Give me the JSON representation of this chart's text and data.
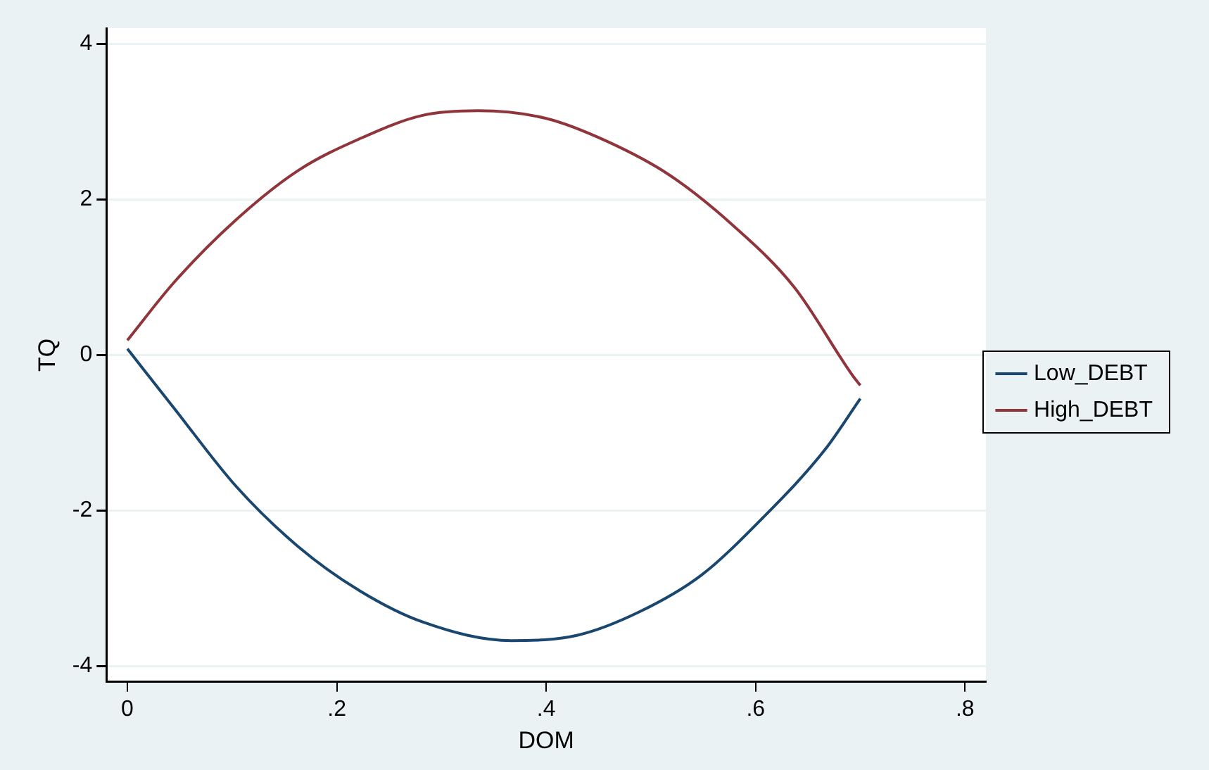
{
  "chart_data": {
    "type": "line",
    "xlabel": "DOM",
    "ylabel": "TQ",
    "xlim": [
      -0.02,
      0.82
    ],
    "ylim": [
      -4.2,
      4.2
    ],
    "xticks": [
      0,
      {
        "value": 0.2,
        "label": ".2"
      },
      {
        "value": 0.4,
        "label": ".4"
      },
      {
        "value": 0.6,
        "label": ".6"
      },
      {
        "value": 0.8,
        "label": ".8"
      }
    ],
    "yticks": [
      -4,
      -2,
      0,
      2,
      4
    ],
    "grid": "y",
    "legend": "right",
    "marker": "none",
    "line_style": "solid",
    "series": [
      {
        "name": "Low_DEBT",
        "color": "#1a476f",
        "x": [
          0,
          0.045,
          0.104,
          0.163,
          0.222,
          0.282,
          0.367,
          0.43,
          0.489,
          0.548,
          0.607,
          0.666,
          0.7
        ],
        "values": [
          0.08,
          -0.69,
          -1.69,
          -2.46,
          -3.03,
          -3.43,
          -3.67,
          -3.6,
          -3.3,
          -2.83,
          -2.09,
          -1.22,
          -0.56
        ]
      },
      {
        "name": "High_DEBT",
        "color": "#90353b",
        "x": [
          0,
          0.045,
          0.104,
          0.163,
          0.222,
          0.282,
          0.335,
          0.4,
          0.459,
          0.518,
          0.578,
          0.637,
          0.693,
          0.7
        ],
        "values": [
          0.19,
          0.94,
          1.74,
          2.37,
          2.78,
          3.08,
          3.14,
          3.04,
          2.74,
          2.31,
          1.67,
          0.87,
          -0.27,
          -0.39
        ]
      }
    ]
  }
}
